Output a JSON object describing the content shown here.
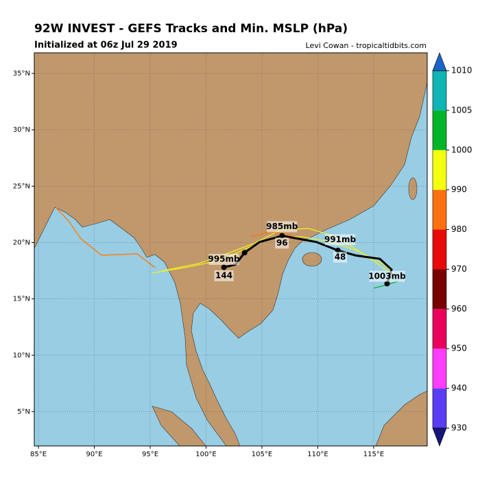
{
  "header": {
    "title": "92W INVEST - GEFS Tracks and Min. MSLP (hPa)",
    "subtitle": "Initialized at 06z Jul 29 2019",
    "credit": "Levi Cowan - tropicaltidbits.com"
  },
  "map": {
    "lonlim": [
      84.63,
      119.79
    ],
    "latlim": [
      1.95,
      36.83
    ],
    "lonticks": [
      {
        "value": 85,
        "label": "85°E"
      },
      {
        "value": 90,
        "label": "90°E"
      },
      {
        "value": 95,
        "label": "95°E"
      },
      {
        "value": 100,
        "label": "100°E"
      },
      {
        "value": 105,
        "label": "105°E"
      },
      {
        "value": 110,
        "label": "110°E"
      },
      {
        "value": 115,
        "label": "115°E"
      }
    ],
    "latticks": [
      {
        "value": 5,
        "label": "5°N"
      },
      {
        "value": 10,
        "label": "10°N"
      },
      {
        "value": 15,
        "label": "15°N"
      },
      {
        "value": 20,
        "label": "20°N"
      },
      {
        "value": 25,
        "label": "25°N"
      },
      {
        "value": 30,
        "label": "30°N"
      },
      {
        "value": 35,
        "label": "35°N"
      }
    ],
    "mean_track": {
      "lon": [
        116.2,
        116.6,
        115.55,
        113.4,
        111.8,
        109.85,
        106.8,
        104.8,
        103.45,
        102.65,
        101.6
      ],
      "lat": [
        16.35,
        17.6,
        18.55,
        18.85,
        19.3,
        20.05,
        20.6,
        20.05,
        19.1,
        18.05,
        17.8
      ]
    },
    "points": {
      "lon": [
        116.2,
        111.8,
        106.8,
        103.45,
        101.6
      ],
      "lat": [
        16.35,
        19.3,
        20.6,
        19.1,
        17.8
      ]
    },
    "labels": [
      {
        "text": "1003mb",
        "lon": 116.2,
        "lat": 17.0
      },
      {
        "text": "991mb",
        "lon": 112.0,
        "lat": 20.25
      },
      {
        "text": "48",
        "lon": 112.0,
        "lat": 18.7
      },
      {
        "text": "985mb",
        "lon": 106.8,
        "lat": 21.4
      },
      {
        "text": "96",
        "lon": 106.8,
        "lat": 19.95
      },
      {
        "text": "995mb",
        "lon": 101.6,
        "lat": 18.5
      },
      {
        "text": "144",
        "lon": 101.6,
        "lat": 17.05
      }
    ]
  },
  "colorbar": {
    "levels": [
      930,
      940,
      950,
      960,
      970,
      980,
      990,
      1000,
      1005,
      1010
    ],
    "colors": [
      "#5a3cf5",
      "#ff3cff",
      "#e8005c",
      "#780000",
      "#e80a0a",
      "#ff7010",
      "#f5ff10",
      "#00b428",
      "#10b4b4"
    ],
    "under": "#16167a",
    "over": "#1a64c8"
  }
}
